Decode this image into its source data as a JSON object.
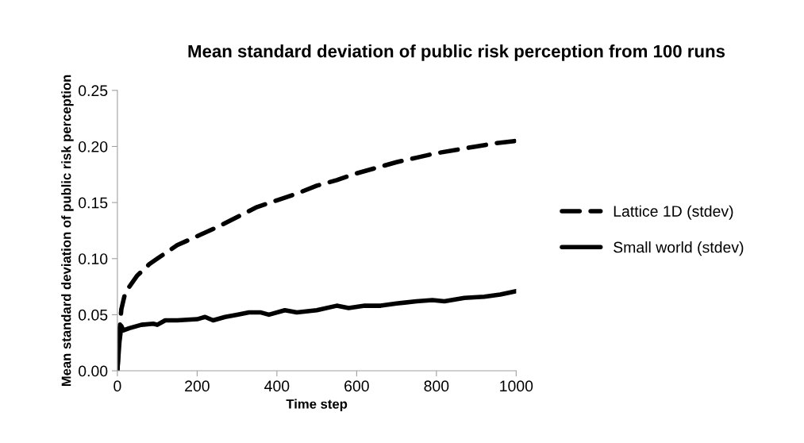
{
  "chart_data": {
    "type": "line",
    "title": "Mean standard deviation of public risk perception from 100 runs",
    "xlabel": "Time step",
    "ylabel": "Mean standard deviation of public risk perception",
    "xlim": [
      0,
      1000
    ],
    "xticks": [
      0,
      200,
      400,
      600,
      800,
      1000
    ],
    "ylim": [
      0,
      0.25
    ],
    "yticks": [
      {
        "value": 0,
        "label": "0.00"
      },
      {
        "value": 0.05,
        "label": "0.05"
      },
      {
        "value": 0.1,
        "label": "0.10"
      },
      {
        "value": 0.15,
        "label": "0.15"
      },
      {
        "value": 0.2,
        "label": "0.20"
      },
      {
        "value": 0.25,
        "label": "0.25"
      }
    ],
    "grid": false,
    "legend": "right",
    "series": [
      {
        "name": "Lattice 1D (stdev)",
        "color": "#000000",
        "line_style": "dashed",
        "x": [
          0,
          5,
          10,
          20,
          50,
          80,
          100,
          150,
          200,
          250,
          300,
          350,
          400,
          450,
          500,
          550,
          600,
          650,
          700,
          750,
          800,
          850,
          900,
          950,
          1000
        ],
        "values": [
          0.0,
          0.035,
          0.055,
          0.07,
          0.085,
          0.095,
          0.1,
          0.112,
          0.12,
          0.128,
          0.137,
          0.146,
          0.152,
          0.158,
          0.165,
          0.17,
          0.176,
          0.181,
          0.186,
          0.19,
          0.194,
          0.197,
          0.2,
          0.203,
          0.205
        ]
      },
      {
        "name": "Small world (stdev)",
        "color": "#000000",
        "line_style": "solid",
        "x": [
          0,
          5,
          10,
          15,
          30,
          60,
          90,
          100,
          120,
          150,
          200,
          220,
          240,
          270,
          300,
          330,
          360,
          380,
          420,
          450,
          500,
          550,
          580,
          620,
          660,
          700,
          750,
          790,
          820,
          870,
          920,
          960,
          1000
        ],
        "values": [
          0.0,
          0.025,
          0.04,
          0.036,
          0.038,
          0.041,
          0.042,
          0.041,
          0.045,
          0.045,
          0.046,
          0.048,
          0.045,
          0.048,
          0.05,
          0.052,
          0.052,
          0.05,
          0.054,
          0.052,
          0.054,
          0.058,
          0.056,
          0.058,
          0.058,
          0.06,
          0.062,
          0.063,
          0.062,
          0.065,
          0.066,
          0.068,
          0.071
        ]
      }
    ]
  }
}
